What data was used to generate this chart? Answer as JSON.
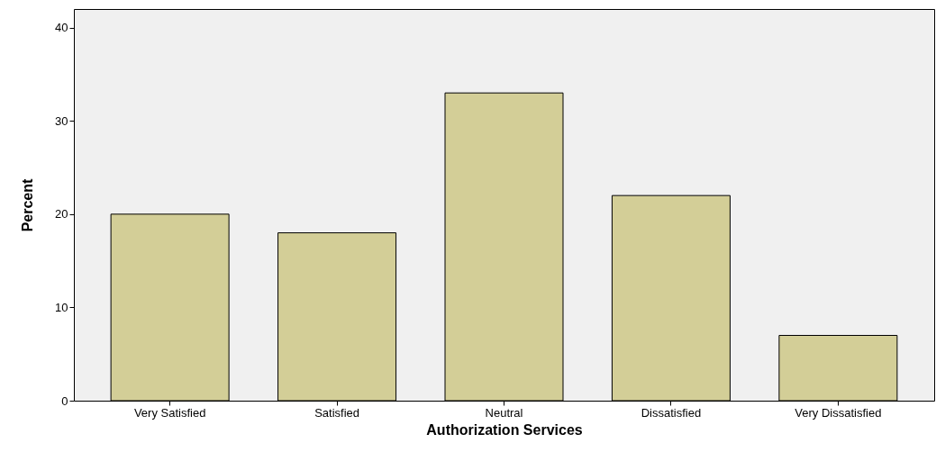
{
  "chart_data": {
    "type": "bar",
    "xlabel": "Authorization Services",
    "ylabel": "Percent",
    "categories": [
      "Very Satisfied",
      "Satisfied",
      "Neutral",
      "Dissatisfied",
      "Very Dissatisfied"
    ],
    "values": [
      20,
      18,
      33,
      22,
      7
    ],
    "color": "#d3ce97",
    "ylim": [
      0,
      42
    ],
    "yticks": [
      0,
      10,
      20,
      30,
      40
    ],
    "grid": false
  }
}
